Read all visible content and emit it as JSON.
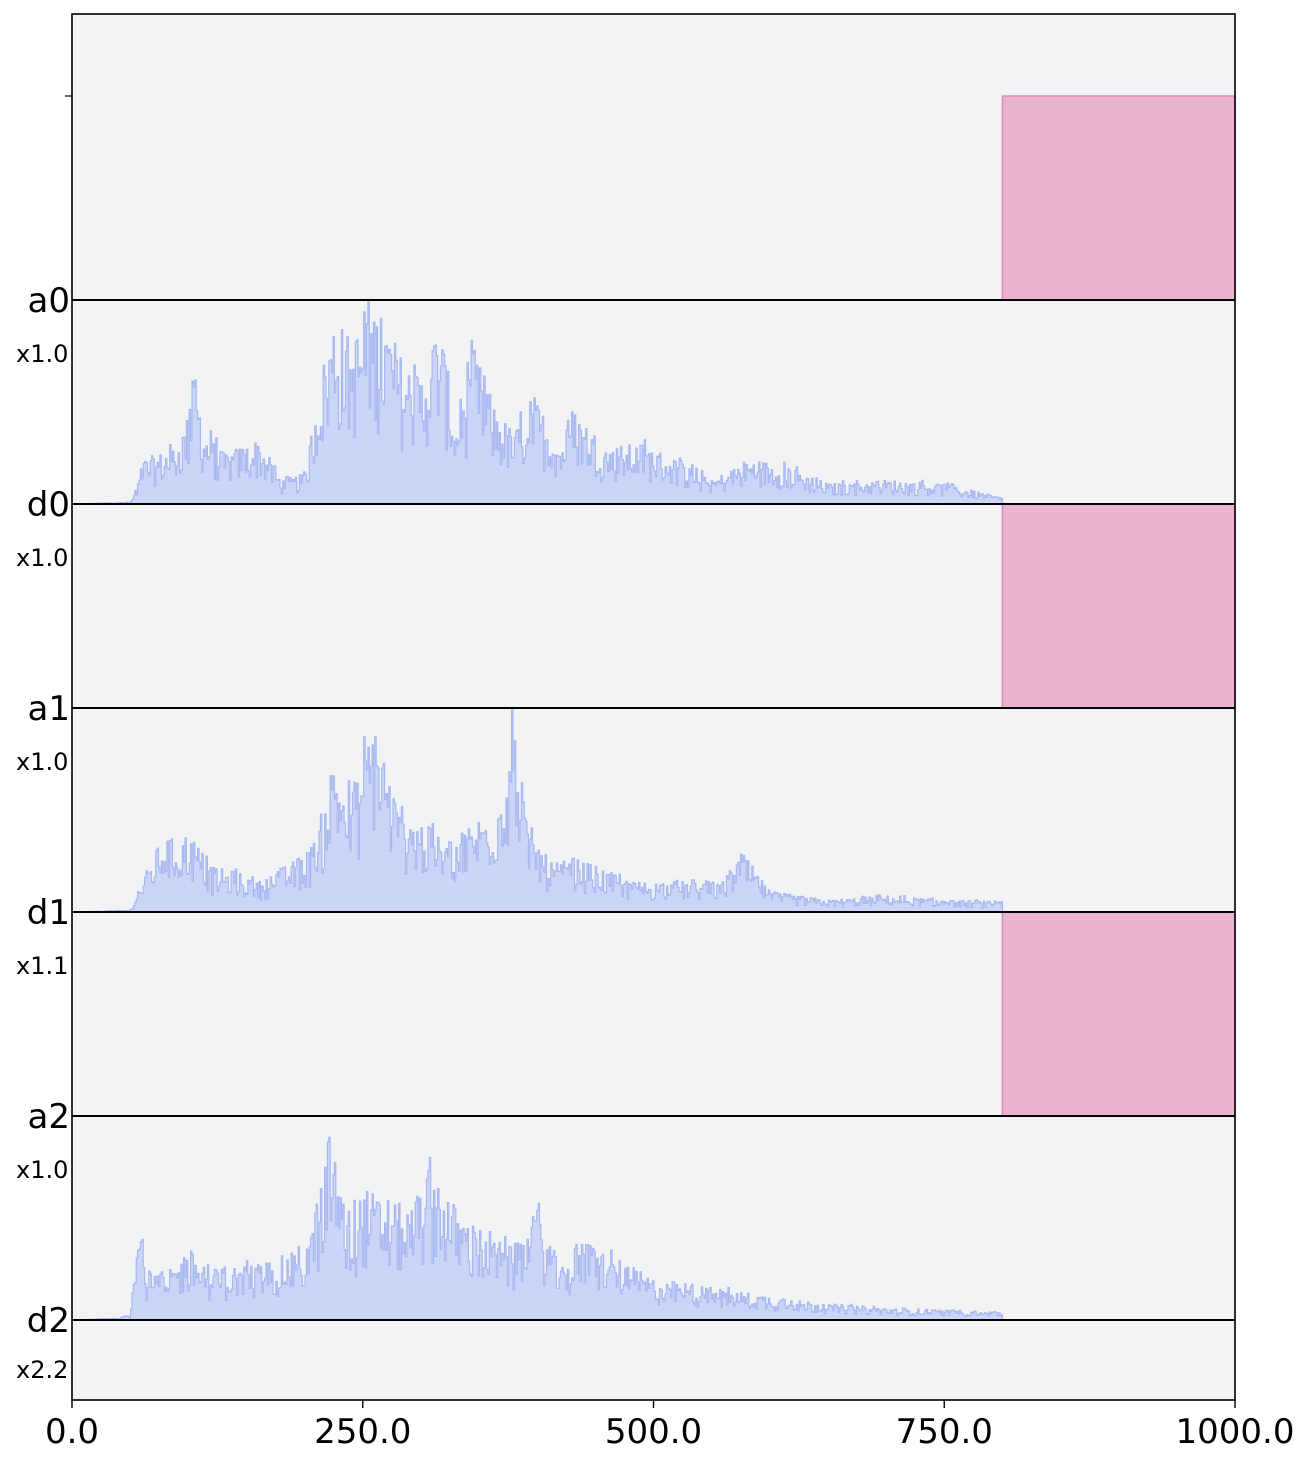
{
  "chart_data": {
    "type": "area",
    "title": "",
    "xlabel": "",
    "ylabel": "",
    "xlim": [
      0,
      1000
    ],
    "x_ticks": [
      0,
      250,
      500,
      750,
      1000
    ],
    "x_tick_labels": [
      "0.0",
      "250.0",
      "500.0",
      "750.0",
      "1000.0"
    ],
    "grid": false,
    "legend": "none",
    "colors": {
      "background": "#f2f3f5",
      "acceptor_fill": "#eab3cf",
      "acceptor_stroke": "#e08ab4",
      "donor_fill": "#c7d2f7",
      "donor_stroke": "#a8b8f0",
      "baseline": "#000000"
    },
    "tracks": [
      {
        "label": "a0",
        "scale": "",
        "kind": "acceptor",
        "blocks": [
          {
            "start": 800,
            "end": 1000,
            "level": 1.0
          }
        ]
      },
      {
        "label": "d0",
        "scale": "x1.0",
        "kind": "donor",
        "profile": [
          {
            "x": 0,
            "y": 0.0
          },
          {
            "x": 50,
            "y": 0.01
          },
          {
            "x": 55,
            "y": 0.08
          },
          {
            "x": 60,
            "y": 0.22
          },
          {
            "x": 75,
            "y": 0.25
          },
          {
            "x": 90,
            "y": 0.3
          },
          {
            "x": 100,
            "y": 0.45
          },
          {
            "x": 105,
            "y": 0.7
          },
          {
            "x": 112,
            "y": 0.38
          },
          {
            "x": 130,
            "y": 0.25
          },
          {
            "x": 160,
            "y": 0.32
          },
          {
            "x": 180,
            "y": 0.12
          },
          {
            "x": 200,
            "y": 0.15
          },
          {
            "x": 210,
            "y": 0.55
          },
          {
            "x": 225,
            "y": 0.95
          },
          {
            "x": 240,
            "y": 0.8
          },
          {
            "x": 255,
            "y": 1.0
          },
          {
            "x": 270,
            "y": 0.9
          },
          {
            "x": 285,
            "y": 0.7
          },
          {
            "x": 300,
            "y": 0.65
          },
          {
            "x": 315,
            "y": 0.92
          },
          {
            "x": 330,
            "y": 0.4
          },
          {
            "x": 345,
            "y": 0.78
          },
          {
            "x": 360,
            "y": 0.5
          },
          {
            "x": 380,
            "y": 0.35
          },
          {
            "x": 395,
            "y": 0.55
          },
          {
            "x": 420,
            "y": 0.3
          },
          {
            "x": 430,
            "y": 0.48
          },
          {
            "x": 460,
            "y": 0.28
          },
          {
            "x": 490,
            "y": 0.3
          },
          {
            "x": 520,
            "y": 0.22
          },
          {
            "x": 550,
            "y": 0.12
          },
          {
            "x": 580,
            "y": 0.22
          },
          {
            "x": 610,
            "y": 0.2
          },
          {
            "x": 650,
            "y": 0.1
          },
          {
            "x": 700,
            "y": 0.12
          },
          {
            "x": 750,
            "y": 0.1
          },
          {
            "x": 800,
            "y": 0.03
          }
        ]
      },
      {
        "label": "a1",
        "scale": "x1.0",
        "kind": "acceptor",
        "blocks": [
          {
            "start": 800,
            "end": 1000,
            "level": 1.0
          }
        ]
      },
      {
        "label": "d1",
        "scale": "x1.0",
        "kind": "donor",
        "profile": [
          {
            "x": 0,
            "y": 0.0
          },
          {
            "x": 50,
            "y": 0.01
          },
          {
            "x": 55,
            "y": 0.1
          },
          {
            "x": 65,
            "y": 0.22
          },
          {
            "x": 78,
            "y": 0.38
          },
          {
            "x": 90,
            "y": 0.35
          },
          {
            "x": 100,
            "y": 0.4
          },
          {
            "x": 120,
            "y": 0.22
          },
          {
            "x": 140,
            "y": 0.2
          },
          {
            "x": 160,
            "y": 0.15
          },
          {
            "x": 190,
            "y": 0.25
          },
          {
            "x": 210,
            "y": 0.35
          },
          {
            "x": 225,
            "y": 0.8
          },
          {
            "x": 240,
            "y": 0.55
          },
          {
            "x": 260,
            "y": 1.0
          },
          {
            "x": 280,
            "y": 0.5
          },
          {
            "x": 300,
            "y": 0.45
          },
          {
            "x": 320,
            "y": 0.35
          },
          {
            "x": 345,
            "y": 0.45
          },
          {
            "x": 365,
            "y": 0.55
          },
          {
            "x": 380,
            "y": 1.0
          },
          {
            "x": 390,
            "y": 0.45
          },
          {
            "x": 410,
            "y": 0.25
          },
          {
            "x": 440,
            "y": 0.25
          },
          {
            "x": 480,
            "y": 0.15
          },
          {
            "x": 520,
            "y": 0.15
          },
          {
            "x": 560,
            "y": 0.15
          },
          {
            "x": 575,
            "y": 0.3
          },
          {
            "x": 600,
            "y": 0.1
          },
          {
            "x": 650,
            "y": 0.06
          },
          {
            "x": 700,
            "y": 0.08
          },
          {
            "x": 750,
            "y": 0.06
          },
          {
            "x": 800,
            "y": 0.05
          }
        ]
      },
      {
        "label": "a2",
        "scale": "x1.1",
        "kind": "acceptor",
        "blocks": [
          {
            "start": 800,
            "end": 1000,
            "level": 1.0
          }
        ]
      },
      {
        "label": "d2",
        "scale": "x1.0",
        "kind": "donor",
        "profile": [
          {
            "x": 0,
            "y": 0.0
          },
          {
            "x": 40,
            "y": 0.01
          },
          {
            "x": 50,
            "y": 0.03
          },
          {
            "x": 55,
            "y": 0.45
          },
          {
            "x": 57,
            "y": 0.9
          },
          {
            "x": 62,
            "y": 0.25
          },
          {
            "x": 80,
            "y": 0.22
          },
          {
            "x": 100,
            "y": 0.35
          },
          {
            "x": 120,
            "y": 0.25
          },
          {
            "x": 160,
            "y": 0.28
          },
          {
            "x": 200,
            "y": 0.35
          },
          {
            "x": 215,
            "y": 0.7
          },
          {
            "x": 222,
            "y": 1.0
          },
          {
            "x": 235,
            "y": 0.5
          },
          {
            "x": 250,
            "y": 0.65
          },
          {
            "x": 270,
            "y": 0.6
          },
          {
            "x": 290,
            "y": 0.55
          },
          {
            "x": 310,
            "y": 0.78
          },
          {
            "x": 330,
            "y": 0.55
          },
          {
            "x": 350,
            "y": 0.45
          },
          {
            "x": 380,
            "y": 0.35
          },
          {
            "x": 400,
            "y": 0.55
          },
          {
            "x": 420,
            "y": 0.25
          },
          {
            "x": 440,
            "y": 0.4
          },
          {
            "x": 470,
            "y": 0.3
          },
          {
            "x": 500,
            "y": 0.2
          },
          {
            "x": 530,
            "y": 0.18
          },
          {
            "x": 560,
            "y": 0.15
          },
          {
            "x": 600,
            "y": 0.12
          },
          {
            "x": 650,
            "y": 0.08
          },
          {
            "x": 700,
            "y": 0.06
          },
          {
            "x": 750,
            "y": 0.05
          },
          {
            "x": 800,
            "y": 0.04
          }
        ]
      }
    ],
    "extra_scale": "x2.2"
  }
}
